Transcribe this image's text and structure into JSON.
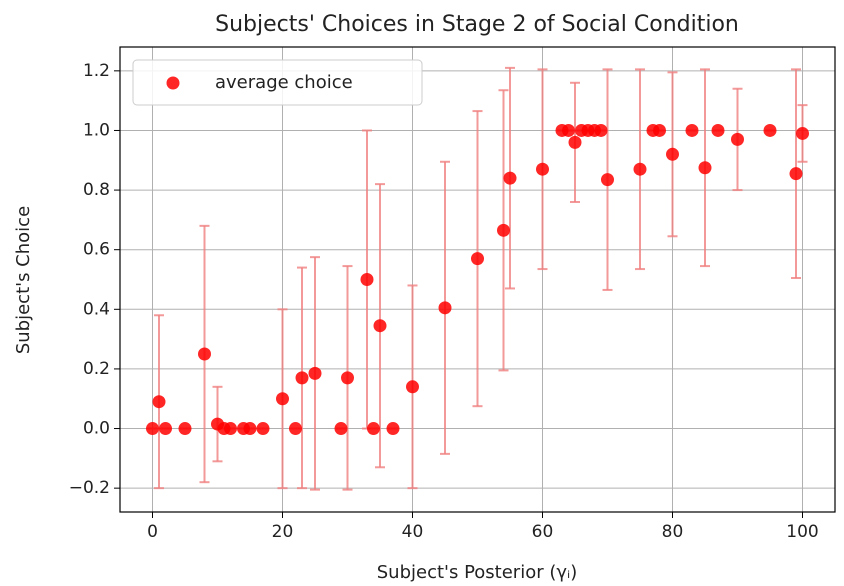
{
  "chart_data": {
    "type": "scatter",
    "title": "Subjects' Choices in Stage 2 of Social Condition",
    "x_label": "Subject's Posterior (γᵢ)",
    "y_label": "Subject's Choice",
    "x": [
      0,
      1,
      2,
      5,
      8,
      10,
      11,
      12,
      14,
      15,
      17,
      20,
      22,
      23,
      25,
      29,
      30,
      33,
      34,
      35,
      37,
      40,
      45,
      50,
      54,
      55,
      60,
      63,
      64,
      65,
      66,
      67,
      68,
      69,
      70,
      75,
      77,
      78,
      80,
      83,
      85,
      87,
      90,
      95,
      99,
      100
    ],
    "series": [
      {
        "name": "average choice",
        "color": "#ff0000",
        "error_color": "#f08080",
        "values": [
          0,
          0.09,
          0,
          0,
          0.25,
          0.015,
          0,
          0,
          0,
          0,
          0,
          0.1,
          0,
          0.17,
          0.185,
          0,
          0.17,
          0.5,
          0,
          0.345,
          0,
          0.14,
          0.405,
          0.57,
          0.665,
          0.84,
          0.87,
          1,
          1,
          0.96,
          1,
          1,
          1,
          1,
          0.835,
          0.87,
          1,
          1,
          0.92,
          1,
          0.875,
          1,
          0.97,
          1,
          0.855,
          0.99
        ],
        "errors": [
          0,
          0.29,
          0,
          0,
          0.43,
          0.125,
          0,
          0,
          0,
          0,
          0,
          0.3,
          0,
          0.37,
          0.39,
          0,
          0.375,
          0.5,
          0,
          0.475,
          0,
          0.34,
          0.49,
          0.495,
          0.47,
          0.37,
          0.335,
          0,
          0,
          0.2,
          0,
          0,
          0,
          0,
          0.37,
          0.335,
          0,
          0,
          0.275,
          0,
          0.33,
          0,
          0.17,
          0,
          0.35,
          0.095
        ]
      }
    ],
    "xlim": [
      -5,
      105
    ],
    "ylim": [
      -0.28,
      1.28
    ],
    "xticks": [
      0,
      20,
      40,
      60,
      80,
      100
    ],
    "yticks": [
      {
        "value": -0.2,
        "label": "−0.2"
      },
      {
        "value": 0,
        "label": "0.0"
      },
      {
        "value": 0.2,
        "label": "0.2"
      },
      {
        "value": 0.4,
        "label": "0.4"
      },
      {
        "value": 0.6,
        "label": "0.6"
      },
      {
        "value": 0.8,
        "label": "0.8"
      },
      {
        "value": 1.0,
        "label": "1.0"
      },
      {
        "value": 1.2,
        "label": "1.2"
      }
    ],
    "grid": true,
    "legend": "upper left"
  }
}
